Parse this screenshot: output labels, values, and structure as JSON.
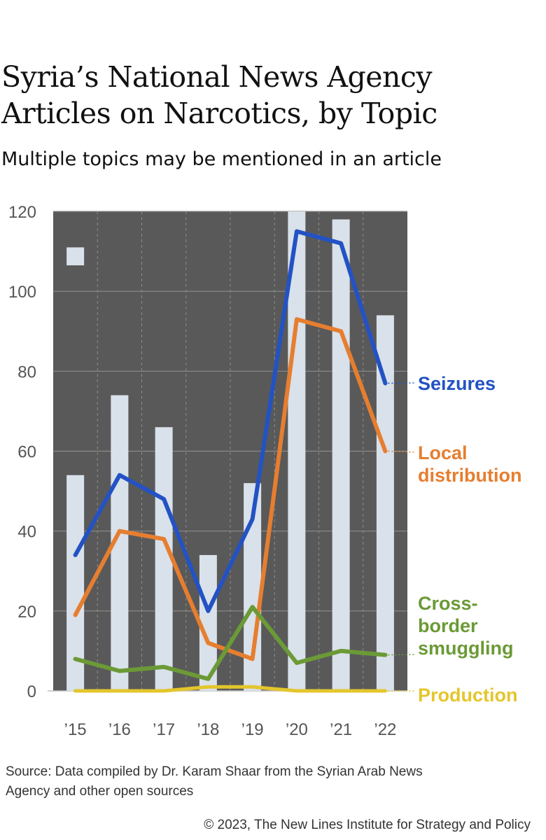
{
  "header": {
    "title": "Syria’s National News Agency Articles on Narcotics, by Topic",
    "subtitle": "Multiple topics may be mentioned in an article"
  },
  "footer": {
    "source": "Source: Data compiled by Dr. Karam Shaar from the Syrian Arab News Agency and other open sources",
    "copyright": "© 2023, The New Lines Institute for Strategy and Policy"
  },
  "colors": {
    "background": "#595959",
    "bars": "#d9e1ea",
    "grid": "#8c8c8c",
    "seizures": "#2352c4",
    "local_distribution": "#e67e30",
    "cross_border_smuggling": "#6b9a36",
    "production": "#e4c62c"
  },
  "chart_data": {
    "type": "line",
    "title": "Syria’s National News Agency Articles on Narcotics, by Topic",
    "subtitle": "Multiple topics may be mentioned in an article",
    "categories": [
      "’15",
      "’16",
      "’17",
      "’18",
      "’19",
      "’20",
      "’21",
      "’22"
    ],
    "ylim": [
      0,
      120
    ],
    "yticks": [
      0,
      20,
      40,
      60,
      80,
      100,
      120
    ],
    "grid": true,
    "bars": {
      "values": [
        54,
        74,
        66,
        34,
        52,
        120,
        118,
        94
      ],
      "note_2015_marker": 111
    },
    "series": [
      {
        "name": "Seizures",
        "label_lines": [
          "Seizures"
        ],
        "color_key": "seizures",
        "values": [
          34,
          54,
          48,
          20,
          43,
          115,
          112,
          77
        ]
      },
      {
        "name": "Local distribution",
        "label_lines": [
          "Local",
          "distribution"
        ],
        "color_key": "local_distribution",
        "values": [
          19,
          40,
          38,
          12,
          8,
          93,
          90,
          60
        ]
      },
      {
        "name": "Cross-border smuggling",
        "label_lines": [
          "Cross-",
          "border",
          "smuggling"
        ],
        "color_key": "cross_border_smuggling",
        "values": [
          8,
          5,
          6,
          3,
          21,
          7,
          10,
          9
        ]
      },
      {
        "name": "Production",
        "label_lines": [
          "Production"
        ],
        "color_key": "production",
        "values": [
          0,
          0,
          0,
          1,
          1,
          0,
          0,
          0
        ]
      }
    ]
  }
}
